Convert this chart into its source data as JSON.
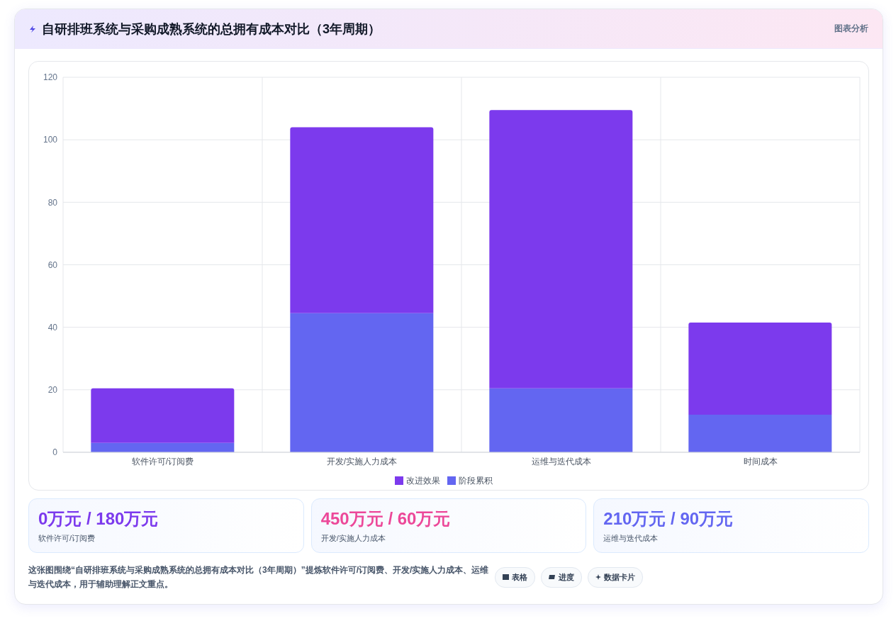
{
  "chart_data": {
    "type": "bar",
    "title": "自研排班系统与采购成熟系统的总拥有成本对比（3年周期）",
    "categories": [
      "软件许可/订阅费",
      "开发/实施人力成本",
      "运维与迭代成本",
      "时间成本"
    ],
    "series": [
      {
        "name": "阶段累积",
        "color": "#6366f1",
        "values": [
          3,
          44.5,
          20.5,
          12
        ]
      },
      {
        "name": "改进效果",
        "color": "#7c3aed",
        "values": [
          17.5,
          59.5,
          89,
          29.5
        ]
      }
    ],
    "stacked": true,
    "ylim": [
      0,
      120
    ],
    "yticks": [
      0,
      20,
      40,
      60,
      80,
      100,
      120
    ],
    "grid": true,
    "legend": "bottom",
    "annotations": [
      "图表分析",
      "0万元 / 180万元",
      "软件许可/订阅费",
      "450万元 / 60万元",
      "开发/实施人力成本",
      "210万元 / 90万元",
      "运维与迭代成本",
      "这张图围绕“自研排班系统与采购成熟系统的总拥有成本对比（3年周期）”提炼软件许可/订阅费、开发/实施人力成本、运维与迭代成本，用于辅助理解正文重点。",
      "表格",
      "进度",
      "数据卡片"
    ]
  }
}
